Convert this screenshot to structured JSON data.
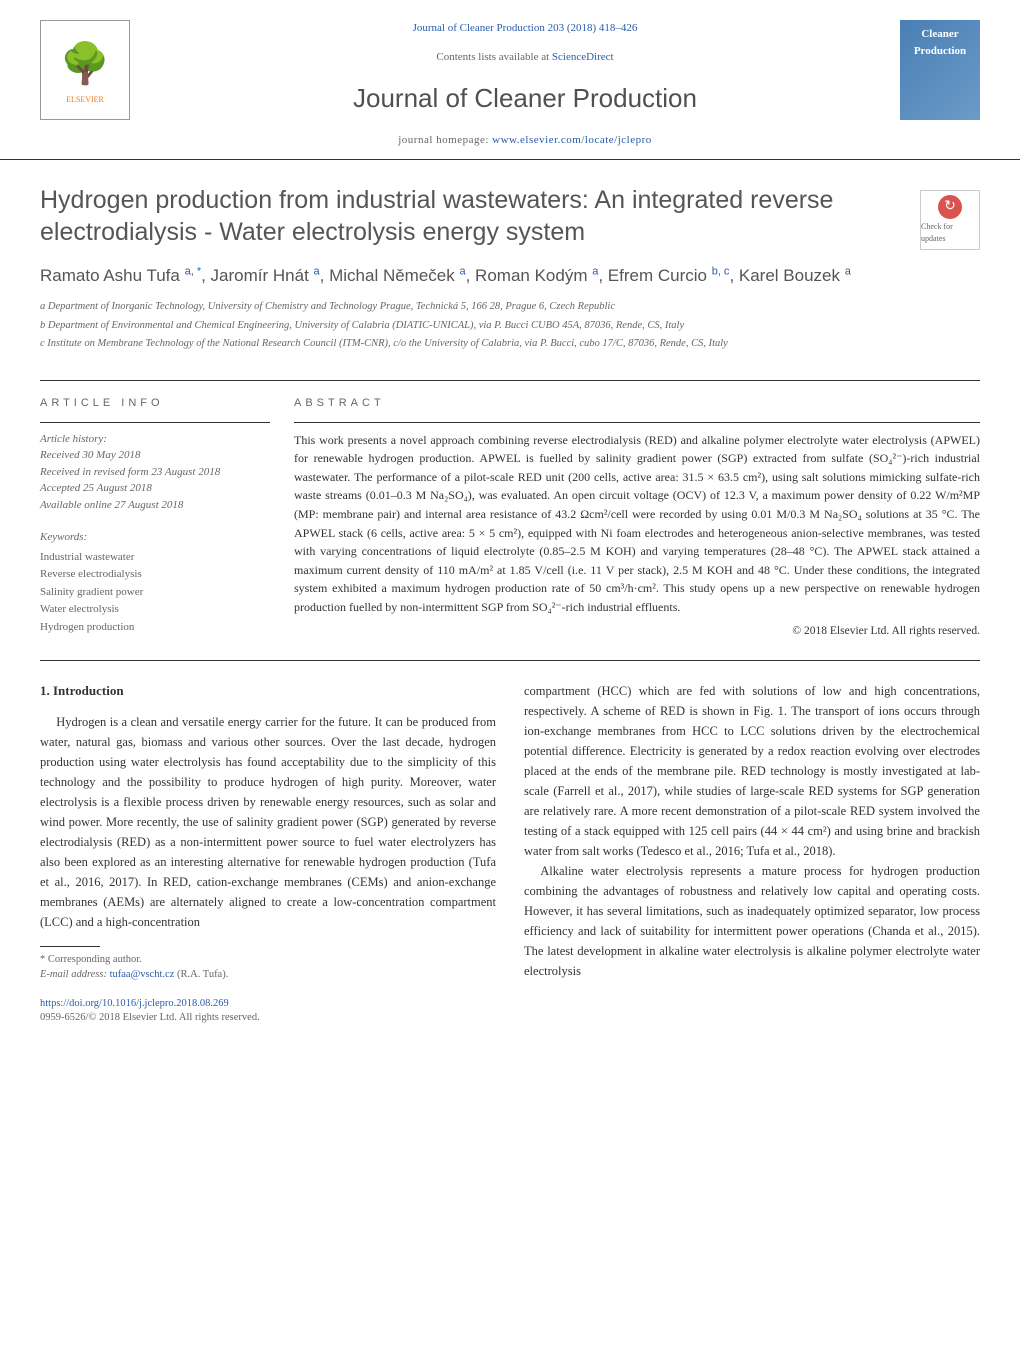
{
  "header": {
    "journal_link": "Journal of Cleaner Production 203 (2018) 418–426",
    "journal_link_url": "#",
    "contents_prefix": "Contents lists available at ",
    "contents_link": "ScienceDirect",
    "journal_title": "Journal of Cleaner Production",
    "homepage_prefix": "journal homepage: ",
    "homepage_link": "www.elsevier.com/locate/jclepro",
    "elsevier_label": "ELSEVIER",
    "cover_line1": "Cleaner",
    "cover_line2": "Production"
  },
  "article": {
    "title": "Hydrogen production from industrial wastewaters: An integrated reverse electrodialysis - Water electrolysis energy system",
    "authors_html": "Ramato Ashu Tufa <sup>a, *</sup>, Jaromír Hnát <sup>a</sup>, Michal Němeček <sup>a</sup>, Roman Kodým <sup>a</sup>, Efrem Curcio <sup>b, c</sup>, Karel Bouzek <sup>a</sup>",
    "affiliations": [
      "a Department of Inorganic Technology, University of Chemistry and Technology Prague, Technická 5, 166 28, Prague 6, Czech Republic",
      "b Department of Environmental and Chemical Engineering, University of Calabria (DIATIC-UNICAL), via P. Bucci CUBO 45A, 87036, Rende, CS, Italy",
      "c Institute on Membrane Technology of the National Research Council (ITM-CNR), c/o the University of Calabria, via P. Bucci, cubo 17/C, 87036, Rende, CS, Italy"
    ],
    "check_updates": "Check for updates"
  },
  "meta": {
    "info_heading": "ARTICLE INFO",
    "abstract_heading": "ABSTRACT",
    "history_label": "Article history:",
    "history_lines": [
      "Received 30 May 2018",
      "Received in revised form 23 August 2018",
      "Accepted 25 August 2018",
      "Available online 27 August 2018"
    ],
    "keywords_label": "Keywords:",
    "keywords": [
      "Industrial wastewater",
      "Reverse electrodialysis",
      "Salinity gradient power",
      "Water electrolysis",
      "Hydrogen production"
    ]
  },
  "abstract": {
    "text": "This work presents a novel approach combining reverse electrodialysis (RED) and alkaline polymer electrolyte water electrolysis (APWEL) for renewable hydrogen production. APWEL is fuelled by salinity gradient power (SGP) extracted from sulfate (SO₄²⁻)-rich industrial wastewater. The performance of a pilot-scale RED unit (200 cells, active area: 31.5 × 63.5 cm²), using salt solutions mimicking sulfate-rich waste streams (0.01–0.3 M Na₂SO₄), was evaluated. An open circuit voltage (OCV) of 12.3 V, a maximum power density of 0.22 W/m²MP (MP: membrane pair) and internal area resistance of 43.2 Ωcm²/cell were recorded by using 0.01 M/0.3 M Na₂SO₄ solutions at 35 °C. The APWEL stack (6 cells, active area: 5 × 5 cm²), equipped with Ni foam electrodes and heterogeneous anion-selective membranes, was tested with varying concentrations of liquid electrolyte (0.85–2.5 M KOH) and varying temperatures (28–48 °C). The APWEL stack attained a maximum current density of 110 mA/m² at 1.85 V/cell (i.e. 11 V per stack), 2.5 M KOH and 48 °C. Under these conditions, the integrated system exhibited a maximum hydrogen production rate of 50 cm³/h·cm². This study opens up a new perspective on renewable hydrogen production fuelled by non-intermittent SGP from SO₄²⁻-rich industrial effluents.",
    "copyright": "© 2018 Elsevier Ltd. All rights reserved."
  },
  "body": {
    "intro_heading": "1. Introduction",
    "left_para": "Hydrogen is a clean and versatile energy carrier for the future. It can be produced from water, natural gas, biomass and various other sources. Over the last decade, hydrogen production using water electrolysis has found acceptability due to the simplicity of this technology and the possibility to produce hydrogen of high purity. Moreover, water electrolysis is a flexible process driven by renewable energy resources, such as solar and wind power. More recently, the use of salinity gradient power (SGP) generated by reverse electrodialysis (RED) as a non-intermittent power source to fuel water electrolyzers has also been explored as an interesting alternative for renewable hydrogen production (Tufa et al., 2016, 2017). In RED, cation-exchange membranes (CEMs) and anion-exchange membranes (AEMs) are alternately aligned to create a low-concentration compartment (LCC) and a high-concentration",
    "right_para1": "compartment (HCC) which are fed with solutions of low and high concentrations, respectively. A scheme of RED is shown in Fig. 1. The transport of ions occurs through ion-exchange membranes from HCC to LCC solutions driven by the electrochemical potential difference. Electricity is generated by a redox reaction evolving over electrodes placed at the ends of the membrane pile. RED technology is mostly investigated at lab-scale (Farrell et al., 2017), while studies of large-scale RED systems for SGP generation are relatively rare. A more recent demonstration of a pilot-scale RED system involved the testing of a stack equipped with 125 cell pairs (44 × 44 cm²) and using brine and brackish water from salt works (Tedesco et al., 2016; Tufa et al., 2018).",
    "right_para2": "Alkaline water electrolysis represents a mature process for hydrogen production combining the advantages of robustness and relatively low capital and operating costs. However, it has several limitations, such as inadequately optimized separator, low process efficiency and lack of suitability for intermittent power operations (Chanda et al., 2015). The latest development in alkaline water electrolysis is alkaline polymer electrolyte water electrolysis"
  },
  "footnote": {
    "corresponding": "* Corresponding author.",
    "email_label": "E-mail address: ",
    "email": "tufaa@vscht.cz",
    "email_suffix": " (R.A. Tufa)."
  },
  "footer": {
    "doi": "https://doi.org/10.1016/j.jclepro.2018.08.269",
    "issn": "0959-6526/© 2018 Elsevier Ltd. All rights reserved."
  },
  "colors": {
    "link": "#2a5caa",
    "text": "#333333",
    "muted": "#666666",
    "accent": "#e67e22"
  }
}
